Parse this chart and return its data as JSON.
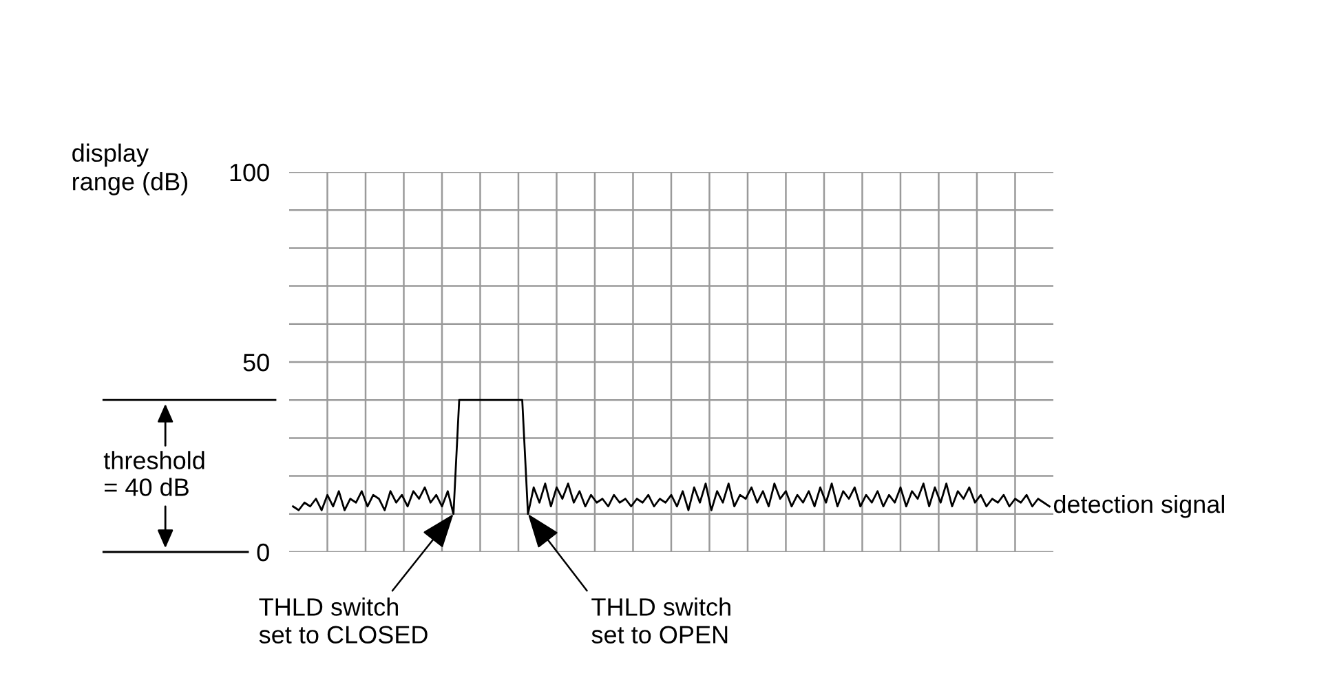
{
  "chart_data": {
    "type": "line",
    "ylabel": "display\nrange (dB)",
    "categories": [
      null,
      null,
      null,
      null,
      null,
      null,
      null,
      null,
      null,
      null,
      null,
      null,
      null,
      null,
      null,
      null,
      null,
      null,
      null,
      null,
      null,
      null,
      null,
      null,
      null,
      null,
      null,
      null,
      null,
      null,
      null,
      null,
      null,
      null,
      null,
      null,
      null,
      null,
      null,
      null,
      null,
      null,
      null,
      null,
      null,
      null,
      null,
      null,
      null,
      null,
      null,
      null,
      null,
      null,
      null,
      null,
      null,
      null,
      null,
      null,
      null,
      null,
      null,
      null,
      null,
      null,
      null,
      null,
      null,
      null,
      null,
      null,
      null,
      null,
      null,
      null,
      null,
      null,
      null,
      null,
      null,
      null,
      null,
      null,
      null,
      null,
      null,
      null,
      null,
      null,
      null,
      null,
      null,
      null,
      null,
      null,
      null,
      null,
      null,
      null,
      null,
      null,
      null,
      null,
      null,
      null,
      null,
      null,
      null,
      null,
      null,
      null,
      null,
      null,
      null,
      null,
      null,
      null,
      null,
      null,
      null,
      null,
      null,
      null,
      null,
      null,
      null,
      null,
      null,
      null,
      null,
      null,
      null
    ],
    "series": [
      {
        "color": "#000000",
        "values": [
          12,
          11,
          13,
          12,
          14,
          11,
          15,
          12,
          16,
          11,
          14,
          13,
          16,
          12,
          15,
          14,
          11,
          16,
          13,
          15,
          12,
          16,
          14,
          17,
          13,
          15,
          12,
          16,
          10,
          40,
          40,
          40,
          40,
          40,
          40,
          40,
          40,
          40,
          40,
          40,
          40,
          10,
          17,
          13,
          18,
          12,
          17,
          14,
          18,
          13,
          16,
          12,
          15,
          13,
          14,
          12,
          15,
          13,
          14,
          12,
          14,
          13,
          15,
          12,
          14,
          13,
          15,
          12,
          16,
          11,
          17,
          13,
          18,
          11,
          16,
          13,
          18,
          12,
          15,
          14,
          17,
          13,
          16,
          12,
          18,
          14,
          16,
          12,
          15,
          13,
          16,
          12,
          17,
          13,
          18,
          12,
          16,
          14,
          17,
          12,
          15,
          13,
          16,
          12,
          15,
          13,
          17,
          12,
          16,
          14,
          18,
          12,
          17,
          13,
          18,
          12,
          16,
          14,
          17,
          13,
          15,
          12,
          14,
          13,
          15,
          12,
          14,
          13,
          15,
          12,
          14,
          13,
          12
        ]
      }
    ],
    "ylim": [
      0,
      100
    ],
    "yticks": [
      0,
      {
        "value": 10,
        "label": null
      },
      {
        "value": 20,
        "label": null
      },
      {
        "value": 30,
        "label": null
      },
      {
        "value": 40,
        "label": null
      },
      50,
      {
        "value": 60,
        "label": null
      },
      {
        "value": 70,
        "label": null
      },
      {
        "value": 80,
        "label": null
      },
      {
        "value": 90,
        "label": null
      },
      100
    ],
    "grid": true,
    "marker": "none",
    "line_style": "solid",
    "annotations": [
      "detection signal",
      "THLD switch\nset to CLOSED",
      "THLD switch\nset to OPEN",
      "threshold\n= 40 dB"
    ]
  }
}
